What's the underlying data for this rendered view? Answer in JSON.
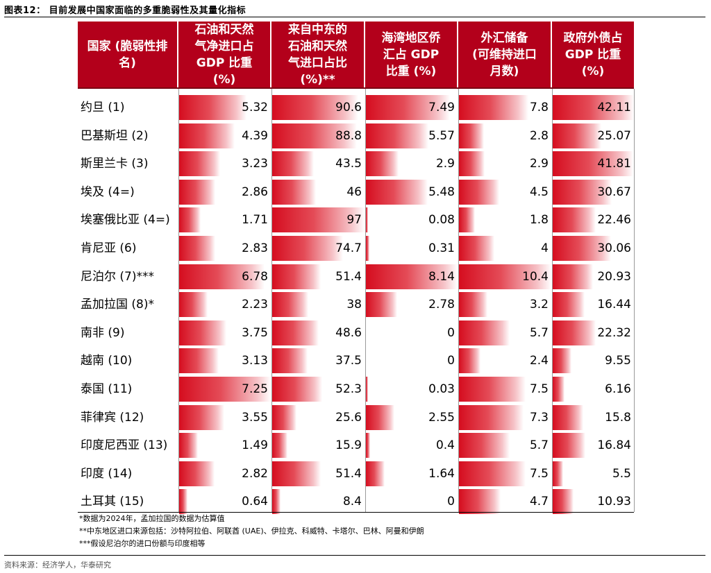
{
  "title": "图表12： 目前发展中国家面临的多重脆弱性及其量化指标",
  "chart_data": {
    "type": "table",
    "title": "图表12： 目前发展中国家面临的多重脆弱性及其量化指标",
    "columns": [
      "国家 (脆弱性排\n名)",
      "石油和天然\n气净进口占\nGDP 比重\n(%)",
      "来自中东的\n石油和天然\n气进口占比\n(%)**",
      "海湾地区侨\n汇占 GDP\n比重 (%)",
      "外汇储备\n(可维持进口\n月数)",
      "政府外债占\nGDP 比重\n(%)"
    ],
    "rows": [
      {
        "country": "约旦 (1)",
        "values": [
          "5.32",
          "90.6",
          "7.49",
          "7.8",
          "42.11"
        ]
      },
      {
        "country": "巴基斯坦 (2)",
        "values": [
          "4.39",
          "88.8",
          "5.57",
          "2.8",
          "25.07"
        ]
      },
      {
        "country": "斯里兰卡 (3)",
        "values": [
          "3.23",
          "43.5",
          "2.9",
          "2.9",
          "41.81"
        ]
      },
      {
        "country": "埃及 (4=)",
        "values": [
          "2.86",
          "46",
          "5.48",
          "4.5",
          "30.67"
        ]
      },
      {
        "country": "埃塞俄比亚 (4=)",
        "values": [
          "1.71",
          "97",
          "0.08",
          "1.8",
          "22.46"
        ]
      },
      {
        "country": "肯尼亚 (6)",
        "values": [
          "2.83",
          "74.7",
          "0.31",
          "4",
          "30.06"
        ]
      },
      {
        "country": "尼泊尔 (7)***",
        "values": [
          "6.78",
          "51.4",
          "8.14",
          "10.4",
          "20.93"
        ]
      },
      {
        "country": "孟加拉国 (8)*",
        "values": [
          "2.23",
          "38",
          "2.78",
          "3.2",
          "16.44"
        ]
      },
      {
        "country": "南非 (9)",
        "values": [
          "3.75",
          "48.6",
          "0",
          "5.7",
          "22.32"
        ]
      },
      {
        "country": "越南 (10)",
        "values": [
          "3.13",
          "37.5",
          "0",
          "2.4",
          "9.55"
        ]
      },
      {
        "country": "泰国 (11)",
        "values": [
          "7.25",
          "52.3",
          "0.03",
          "7.5",
          "6.16"
        ]
      },
      {
        "country": "菲律宾 (12)",
        "values": [
          "3.55",
          "25.6",
          "2.55",
          "7.3",
          "15.8"
        ]
      },
      {
        "country": "印度尼西亚 (13)",
        "values": [
          "1.49",
          "15.9",
          "0.4",
          "5.7",
          "16.84"
        ]
      },
      {
        "country": "印度 (14)",
        "values": [
          "2.82",
          "51.4",
          "1.64",
          "7.5",
          "5.5"
        ]
      },
      {
        "country": "土耳其 (15)",
        "values": [
          "0.64",
          "8.4",
          "0",
          "4.7",
          "10.93"
        ]
      }
    ],
    "bar_color": "#d50d1f",
    "header_color": "#b3001b"
  },
  "notes": [
    "*数据为2024年，孟加拉国的数据为估算值",
    "**中东地区进口来源包括：沙特阿拉伯、阿联酋 (UAE)、伊拉克、科威特、卡塔尔、巴林、阿曼和伊朗",
    "***假设尼泊尔的进口份额与印度相等"
  ],
  "source": "资料来源：经济学人，华泰研究"
}
